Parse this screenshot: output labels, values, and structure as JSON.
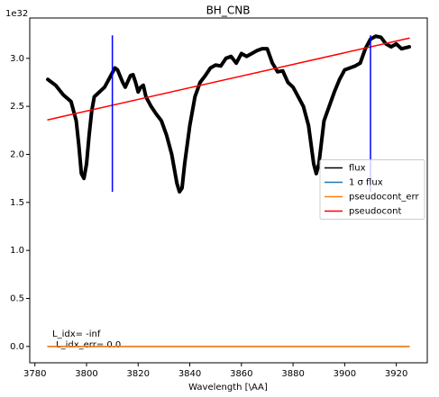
{
  "chart_data": {
    "type": "line",
    "title": "BH_CNB",
    "xlabel": "Wavelength [\\AA]",
    "y_offset_label": "1e32",
    "xlim": [
      3778,
      3932
    ],
    "ylim": [
      -0.17,
      3.42
    ],
    "xticks": [
      3780,
      3800,
      3820,
      3840,
      3860,
      3880,
      3900,
      3920
    ],
    "yticks": [
      {
        "value": 0,
        "label": "0.0"
      },
      {
        "value": 0.5,
        "label": "0.5"
      },
      {
        "value": 1,
        "label": "1.0"
      },
      {
        "value": 1.5,
        "label": "1.5"
      },
      {
        "value": 2,
        "label": "2.0"
      },
      {
        "value": 2.5,
        "label": "2.5"
      },
      {
        "value": 3,
        "label": "3.0"
      }
    ],
    "legend": "center right",
    "series": [
      {
        "name": "flux",
        "color": "#000000",
        "x": [
          3785,
          3788,
          3791,
          3794,
          3796,
          3797,
          3798,
          3799,
          3800,
          3801,
          3802,
          3803,
          3805,
          3807,
          3809,
          3811,
          3812,
          3814,
          3815,
          3817,
          3818,
          3819,
          3820,
          3821,
          3822,
          3823,
          3825,
          3827,
          3829,
          3831,
          3833,
          3835,
          3836,
          3837,
          3838,
          3840,
          3842,
          3844,
          3846,
          3848,
          3850,
          3852,
          3854,
          3856,
          3858,
          3860,
          3862,
          3864,
          3866,
          3868,
          3870,
          3872,
          3874,
          3876,
          3878,
          3880,
          3882,
          3884,
          3886,
          3888,
          3889,
          3890,
          3892,
          3894,
          3896,
          3898,
          3900,
          3902,
          3904,
          3906,
          3908,
          3910,
          3912,
          3914,
          3916,
          3918,
          3920,
          3922,
          3925
        ],
        "values": [
          2.78,
          2.72,
          2.62,
          2.55,
          2.35,
          2.1,
          1.8,
          1.75,
          1.9,
          2.2,
          2.45,
          2.6,
          2.65,
          2.7,
          2.8,
          2.9,
          2.88,
          2.75,
          2.7,
          2.82,
          2.83,
          2.75,
          2.65,
          2.7,
          2.72,
          2.6,
          2.5,
          2.42,
          2.35,
          2.2,
          2.0,
          1.7,
          1.61,
          1.65,
          1.9,
          2.3,
          2.6,
          2.75,
          2.82,
          2.9,
          2.93,
          2.92,
          3.0,
          3.02,
          2.95,
          3.05,
          3.02,
          3.05,
          3.08,
          3.1,
          3.1,
          2.95,
          2.86,
          2.87,
          2.75,
          2.7,
          2.6,
          2.5,
          2.3,
          1.9,
          1.8,
          1.9,
          2.35,
          2.5,
          2.65,
          2.78,
          2.88,
          2.9,
          2.92,
          2.95,
          3.1,
          3.2,
          3.23,
          3.22,
          3.15,
          3.12,
          3.15,
          3.1,
          3.12
        ]
      },
      {
        "name": "1 σ flux",
        "color": "#1f77b4",
        "x": [
          3785,
          3925
        ],
        "values": [
          0,
          0
        ]
      },
      {
        "name": "pseudocont_err",
        "color": "#ff7f0e",
        "x": [
          3785,
          3925
        ],
        "values": [
          0,
          0
        ]
      },
      {
        "name": "pseudocont",
        "color": "#ff0000",
        "x": [
          3785,
          3925
        ],
        "values": [
          2.36,
          3.21
        ]
      }
    ],
    "vlines": {
      "color": "#0000ff",
      "x": [
        3810,
        3910
      ],
      "ymin": 1.61,
      "ymax": 3.24
    },
    "annotations": [
      "L_idx= -inf",
      "L_idx_err= 0.0"
    ]
  }
}
